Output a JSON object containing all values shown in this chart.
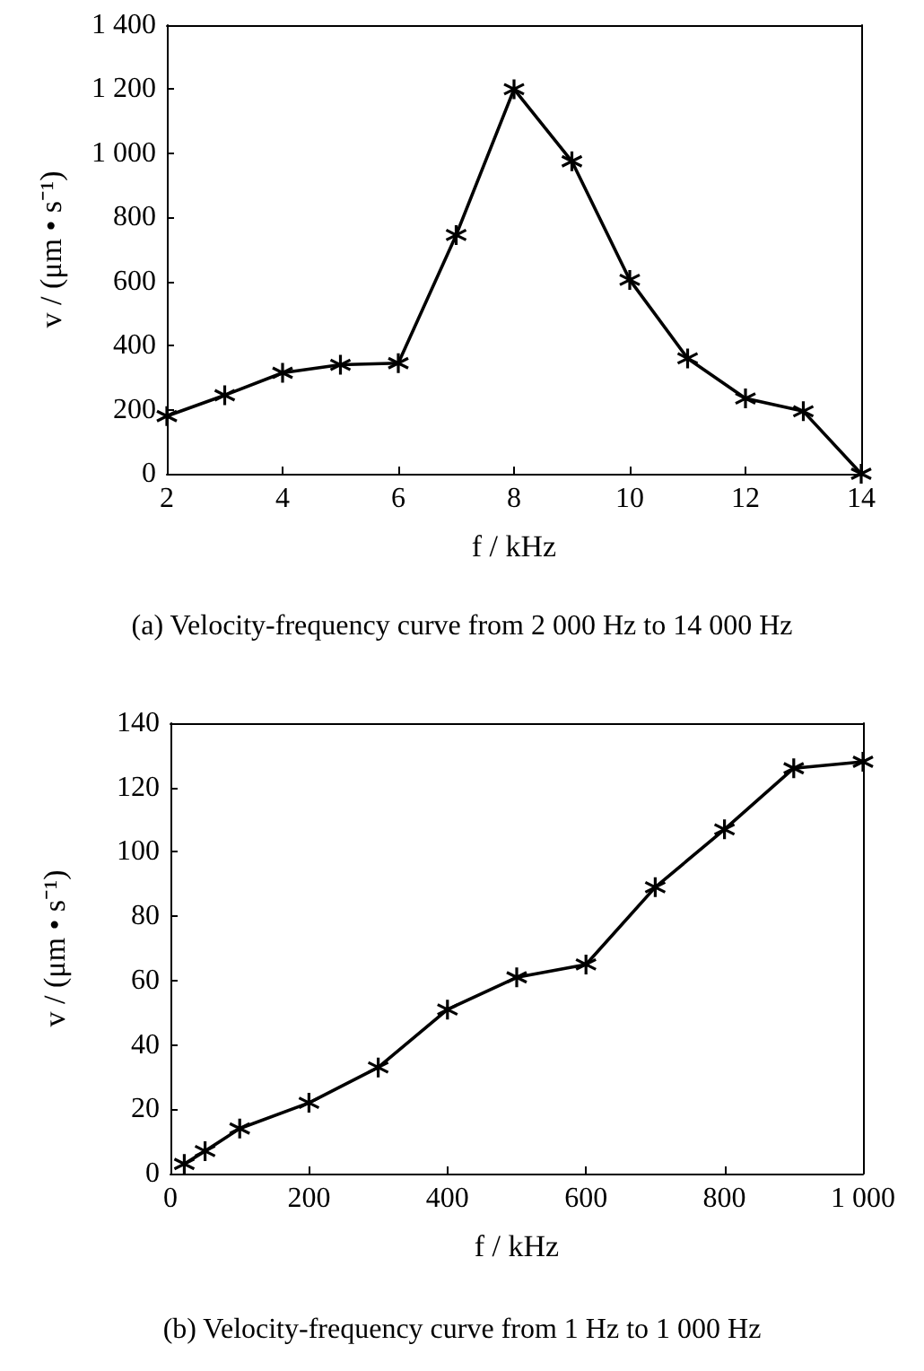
{
  "chart_data": [
    {
      "type": "line",
      "title": "(a) Velocity-frequency curve from 2 000 Hz to 14 000 Hz",
      "xlabel": "f / kHz",
      "ylabel": "v / (μm • s⁻¹)",
      "x": [
        2,
        3,
        4,
        5,
        6,
        7,
        8,
        9,
        10,
        11,
        12,
        13,
        14
      ],
      "series": [
        {
          "color": "#000000",
          "values": [
            180,
            245,
            315,
            340,
            345,
            745,
            1200,
            975,
            605,
            360,
            235,
            195,
            0
          ]
        }
      ],
      "xlim": [
        2,
        14
      ],
      "xticks": [
        2,
        4,
        6,
        8,
        10,
        12,
        14
      ],
      "ylim": [
        0,
        1400
      ],
      "yticks": [
        0,
        200,
        400,
        600,
        800,
        {
          "value": 1000,
          "label": "1 000"
        },
        {
          "value": 1200,
          "label": "1 200"
        },
        {
          "value": 1400,
          "label": "1 400"
        }
      ],
      "grid": false,
      "marker": "cross",
      "line_style": "solid"
    },
    {
      "type": "line",
      "title": "(b) Velocity-frequency curve from 1 Hz to 1 000 Hz",
      "xlabel": "f / kHz",
      "ylabel": "v / (μm • s⁻¹)",
      "x": [
        20,
        50,
        100,
        200,
        300,
        400,
        500,
        600,
        700,
        800,
        900,
        1000
      ],
      "series": [
        {
          "color": "#000000",
          "values": [
            3,
            7,
            14,
            22,
            33,
            51,
            61,
            65,
            89,
            107,
            126,
            128
          ]
        }
      ],
      "xlim": [
        0,
        1000
      ],
      "xticks": [
        0,
        200,
        400,
        600,
        800,
        {
          "value": 1000,
          "label": "1 000"
        }
      ],
      "ylim": [
        0,
        140
      ],
      "yticks": [
        0,
        20,
        40,
        60,
        80,
        100,
        120,
        140
      ],
      "grid": false,
      "marker": "cross",
      "line_style": "solid"
    }
  ]
}
